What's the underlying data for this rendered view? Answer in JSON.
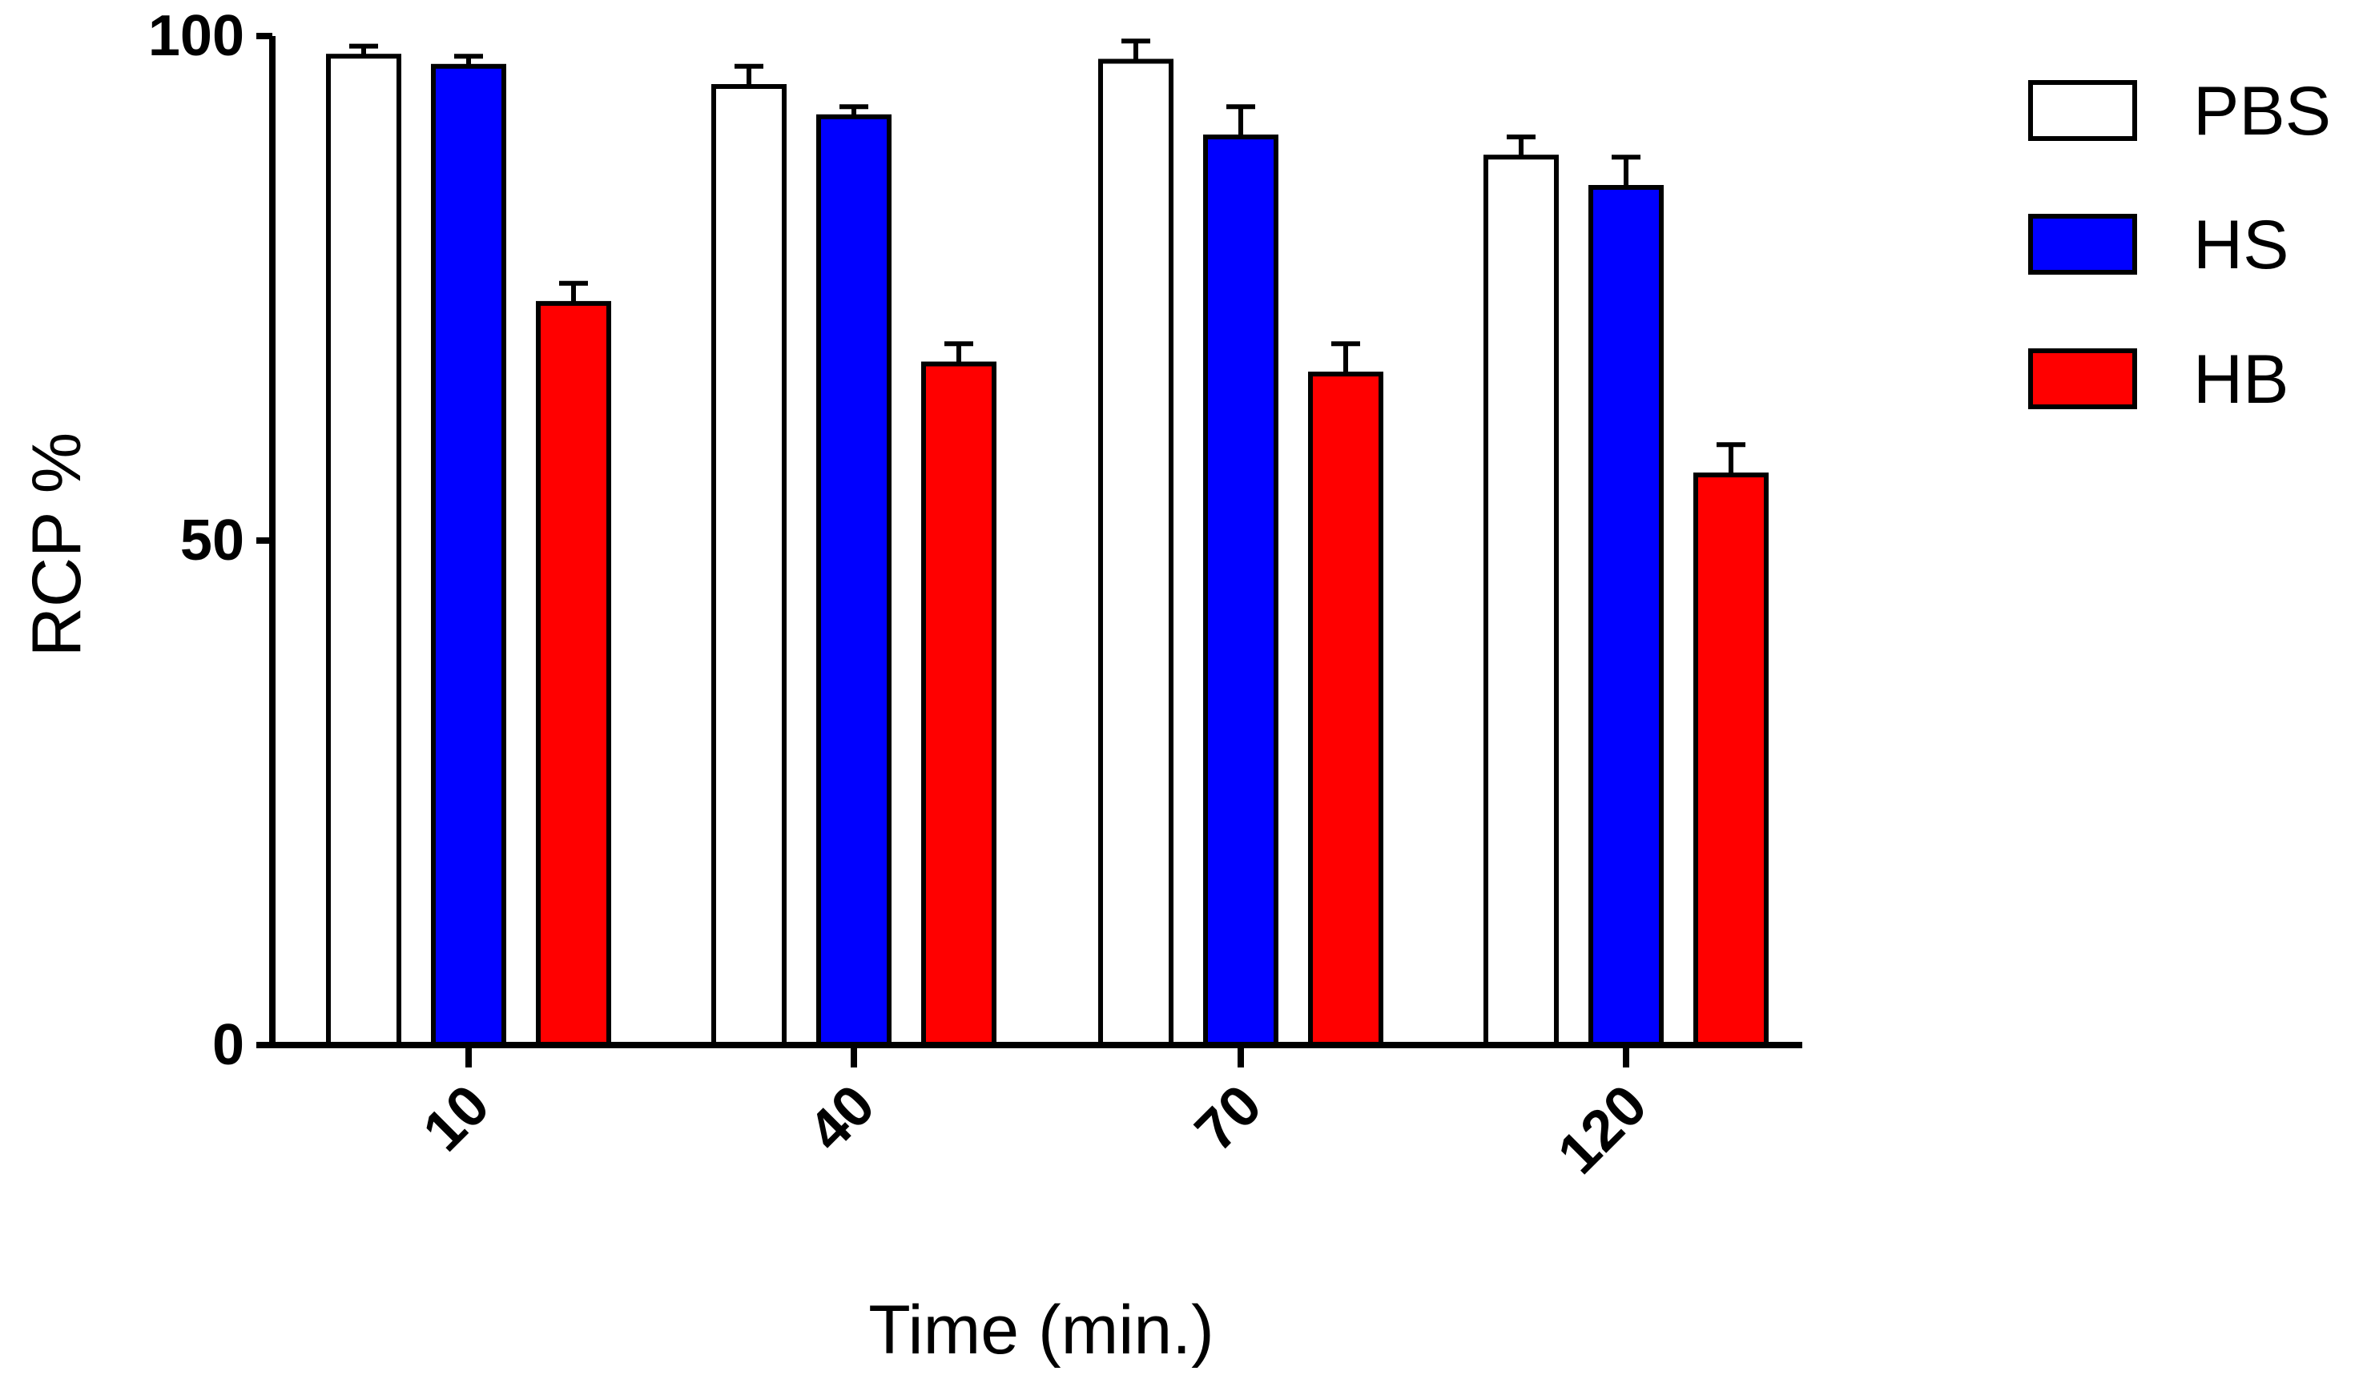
{
  "chart_data": {
    "type": "bar",
    "title": "",
    "xlabel": "Time (min.)",
    "ylabel": "RCP %",
    "ylim": [
      0,
      100
    ],
    "yticks": [
      "0",
      "50",
      "100"
    ],
    "categories": [
      "10",
      "40",
      "70",
      "120"
    ],
    "series": [
      {
        "name": "PBS",
        "color": "#ffffff",
        "values": [
          98,
          95,
          97.5,
          88
        ],
        "errors": [
          1,
          2,
          2,
          2
        ]
      },
      {
        "name": "HS",
        "color": "#0000ff",
        "values": [
          97,
          92,
          90,
          85
        ],
        "errors": [
          1,
          1,
          3,
          3
        ]
      },
      {
        "name": "HB",
        "color": "#ff0000",
        "values": [
          73.5,
          67.5,
          66.5,
          56.5
        ],
        "errors": [
          2,
          2,
          3,
          3
        ]
      }
    ],
    "legend_position": "top-right",
    "grid": false
  }
}
